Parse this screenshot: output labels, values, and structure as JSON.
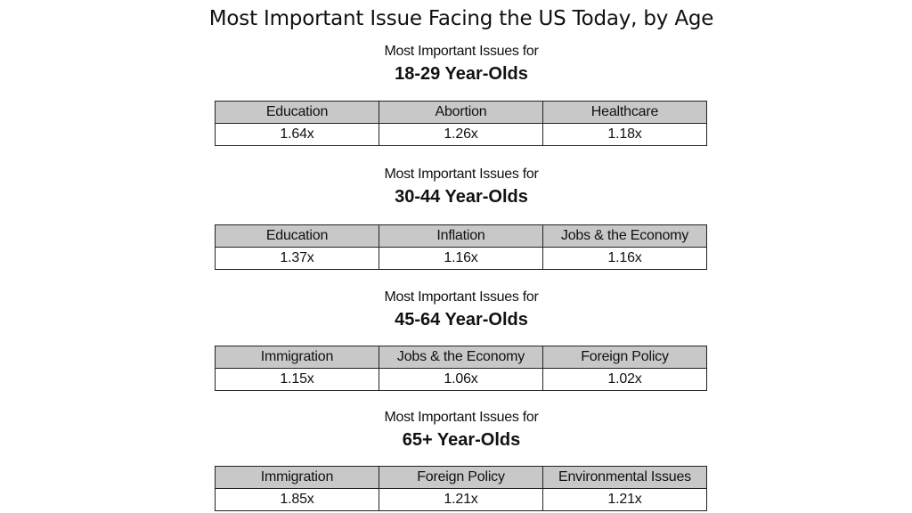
{
  "title": "Most Important Issue Facing the US Today, by Age",
  "chart_data": [
    {
      "type": "table",
      "subtitle": "Most Important Issues for",
      "age_group": "18-29 Year-Olds",
      "columns": [
        "Education",
        "Abortion",
        "Healthcare"
      ],
      "values": [
        "1.64x",
        "1.26x",
        "1.18x"
      ]
    },
    {
      "type": "table",
      "subtitle": "Most Important Issues for",
      "age_group": "30-44 Year-Olds",
      "columns": [
        "Education",
        "Inflation",
        "Jobs & the Economy"
      ],
      "values": [
        "1.37x",
        "1.16x",
        "1.16x"
      ]
    },
    {
      "type": "table",
      "subtitle": "Most Important Issues for",
      "age_group": "45-64 Year-Olds",
      "columns": [
        "Immigration",
        "Jobs & the Economy",
        "Foreign Policy"
      ],
      "values": [
        "1.15x",
        "1.06x",
        "1.02x"
      ]
    },
    {
      "type": "table",
      "subtitle": "Most Important Issues for",
      "age_group": "65+ Year-Olds",
      "columns": [
        "Immigration",
        "Foreign Policy",
        "Environmental Issues"
      ],
      "values": [
        "1.85x",
        "1.21x",
        "1.21x"
      ]
    }
  ],
  "colors": {
    "header_fill": "#c8c8c8",
    "border": "#222222",
    "text": "#111111"
  }
}
